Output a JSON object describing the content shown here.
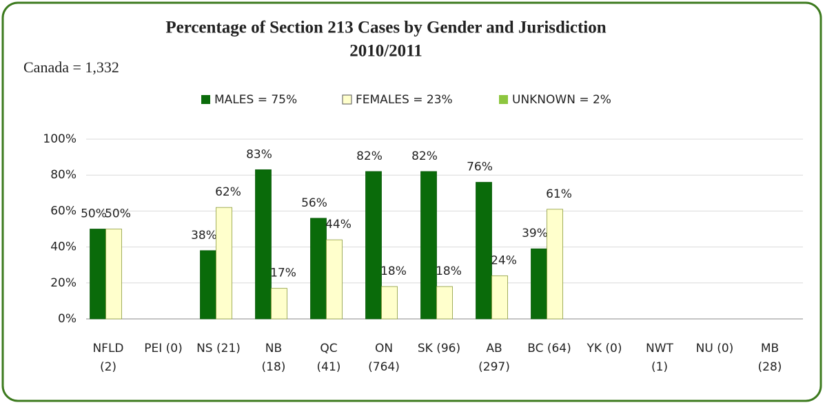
{
  "chart_data": {
    "type": "bar",
    "title": "Percentage of Section 213 Cases by Gender and Jurisdiction",
    "subtitle": "2010/2011",
    "annotation": "Canada = 1,332",
    "categories": [
      [
        "NFLD",
        "(2)"
      ],
      [
        "PEI (0)"
      ],
      [
        "NS (21)"
      ],
      [
        "NB",
        "(18)"
      ],
      [
        "QC",
        "(41)"
      ],
      [
        "ON",
        "(764)"
      ],
      [
        "SK (96)"
      ],
      [
        "AB",
        "(297)"
      ],
      [
        "BC (64)"
      ],
      [
        "YK (0)"
      ],
      [
        "NWT",
        "(1)"
      ],
      [
        "NU (0)"
      ],
      [
        "MB",
        "(28)"
      ]
    ],
    "series": [
      {
        "name": "MALES = 75%",
        "color": "#0a6b0a",
        "values": [
          50,
          null,
          38,
          83,
          56,
          82,
          82,
          76,
          39,
          null,
          null,
          null,
          null
        ],
        "value_labels": [
          "50%",
          null,
          "38%",
          "83%",
          "56%",
          "82%",
          "82%",
          "76%",
          "39%",
          null,
          null,
          null,
          null
        ]
      },
      {
        "name": "FEMALES = 23%",
        "color": "#ffffcc",
        "values": [
          50,
          null,
          62,
          17,
          44,
          18,
          18,
          24,
          61,
          null,
          null,
          null,
          null
        ],
        "value_labels": [
          "50%",
          null,
          "62%",
          "17%",
          "44%",
          "18%",
          "18%",
          "24%",
          "61%",
          null,
          null,
          null,
          null
        ]
      },
      {
        "name": "UNKNOWN = 2%",
        "color": "#8dc63f",
        "values": [
          null,
          null,
          null,
          null,
          null,
          null,
          null,
          null,
          null,
          null,
          null,
          null,
          null
        ],
        "value_labels": [
          null,
          null,
          null,
          null,
          null,
          null,
          null,
          null,
          null,
          null,
          null,
          null,
          null
        ]
      }
    ],
    "ylim": [
      0,
      100
    ],
    "yticks": [
      {
        "value": 0,
        "label": "0%"
      },
      {
        "value": 20,
        "label": "20%"
      },
      {
        "value": 40,
        "label": "40%"
      },
      {
        "value": 60,
        "label": "60%"
      },
      {
        "value": 80,
        "label": "80%"
      },
      {
        "value": 100,
        "label": "100%"
      }
    ],
    "grid": true,
    "legend": "top"
  }
}
